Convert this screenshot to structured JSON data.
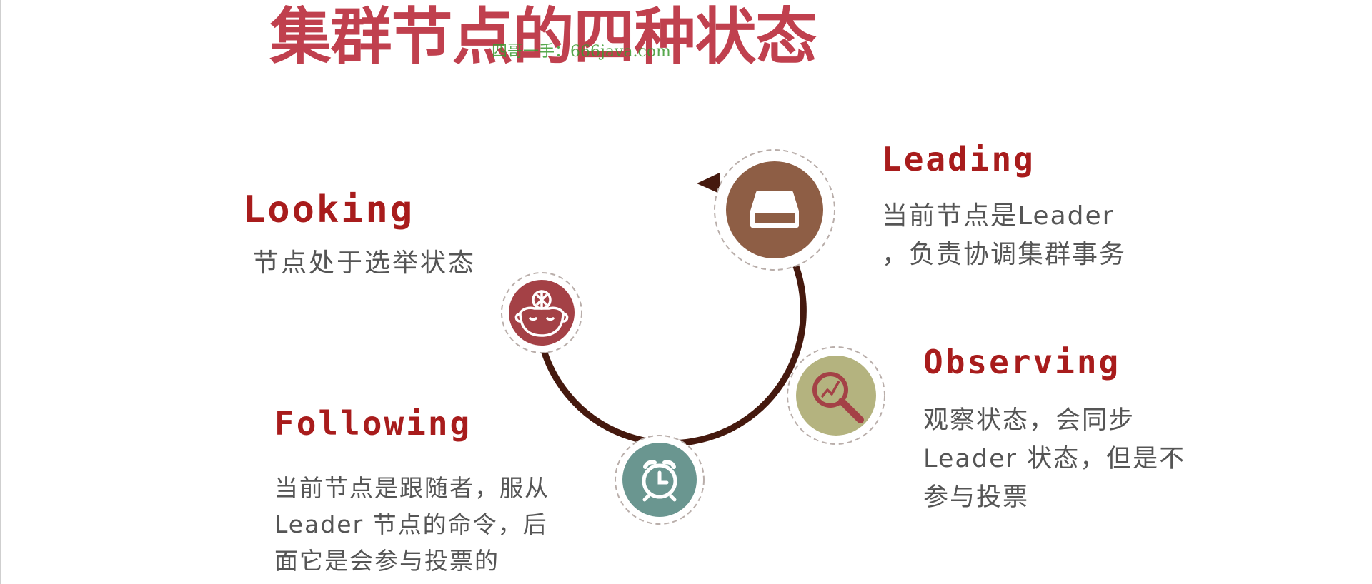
{
  "title": "集群节点的四种状态",
  "watermark": "四哥一手：666java.com",
  "colors": {
    "title": "#c0404e",
    "heading": "#a81c1c",
    "text": "#555555",
    "arc": "#45190e",
    "leading": "#8e5e45",
    "observing": "#b4b37f",
    "following": "#6a9690",
    "looking": "#a44146",
    "ring": "#b9aeaa"
  },
  "states": {
    "leading": {
      "name": "Leading",
      "icon": "inbox-tray-icon",
      "lines": [
        "当前节点是Leader",
        "，负责协调集群事务"
      ]
    },
    "observing": {
      "name": "Observing",
      "icon": "magnifier-chart-icon",
      "lines": [
        "观察状态，会同步",
        "Leader 状态，但是不",
        "参与投票"
      ]
    },
    "following": {
      "name": "Following",
      "icon": "alarm-clock-icon",
      "lines": [
        "当前节点是跟随者，服从",
        "Leader 节点的命令，后",
        "面它是会参与投票的"
      ]
    },
    "looking": {
      "name": "Looking",
      "icon": "thinking-head-icon",
      "lines": [
        "节点处于选举状态"
      ]
    }
  }
}
